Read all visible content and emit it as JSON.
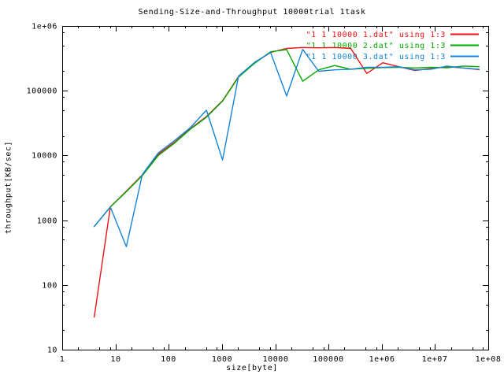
{
  "chart_data": {
    "type": "line",
    "title": "Sending-Size-and-Throughput 10000trial 1task",
    "xlabel": "size[byte]",
    "ylabel": "throughput[KB/sec]",
    "x_scale": "log",
    "y_scale": "log",
    "xlim": [
      1,
      100000000
    ],
    "ylim": [
      10,
      1000000
    ],
    "grid": "off",
    "legend_position": "top-right-inside",
    "x_ticks": [
      {
        "value": 1,
        "label": "1"
      },
      {
        "value": 10,
        "label": "10"
      },
      {
        "value": 100,
        "label": "100"
      },
      {
        "value": 1000,
        "label": "1000"
      },
      {
        "value": 10000,
        "label": "10000"
      },
      {
        "value": 100000,
        "label": "100000"
      },
      {
        "value": 1000000,
        "label": "1e+06"
      },
      {
        "value": 10000000,
        "label": "1e+07"
      },
      {
        "value": 100000000,
        "label": "1e+08"
      }
    ],
    "y_ticks": [
      {
        "value": 10,
        "label": "10"
      },
      {
        "value": 100,
        "label": "100"
      },
      {
        "value": 1000,
        "label": "1000"
      },
      {
        "value": 10000,
        "label": "10000"
      },
      {
        "value": 100000,
        "label": "100000"
      },
      {
        "value": 1000000,
        "label": "1e+06"
      }
    ],
    "minor_tick_multipliers": [
      2,
      5,
      8
    ],
    "x": [
      4,
      8,
      16,
      32,
      64,
      128,
      256,
      512,
      1024,
      2048,
      4096,
      8192,
      16384,
      32768,
      65536,
      131072,
      262144,
      524288,
      1048576,
      2097152,
      4194304,
      8388608,
      16777216,
      33554432,
      67108864
    ],
    "series": [
      {
        "name": "\"1 1 10000 1.dat\" using 1:3",
        "color": "#ee1111",
        "values": [
          32,
          1600,
          2800,
          5000,
          10500,
          16000,
          26000,
          40000,
          70000,
          165000,
          270000,
          390000,
          450000,
          465000,
          460000,
          465000,
          450000,
          185000,
          270000,
          235000,
          205000,
          220000,
          235000,
          225000,
          212000
        ]
      },
      {
        "name": "\"1 1 10000 2.dat\" using 1:3",
        "color": "#00aa00",
        "values": [
          800,
          1600,
          2750,
          4900,
          10000,
          15500,
          25500,
          39000,
          69000,
          162000,
          265000,
          400000,
          430000,
          140000,
          210000,
          245000,
          215000,
          222000,
          228000,
          230000,
          225000,
          230000,
          226000,
          240000,
          235000
        ]
      },
      {
        "name": "\"1 1 10000 3.dat\" using 1:3",
        "color": "#1484d8",
        "values": [
          800,
          1600,
          390,
          5100,
          11000,
          17000,
          27000,
          50000,
          8500,
          168000,
          275000,
          390000,
          83000,
          435000,
          200000,
          210000,
          215000,
          230000,
          230000,
          235000,
          210000,
          215000,
          240000,
          225000,
          215000
        ]
      }
    ]
  }
}
